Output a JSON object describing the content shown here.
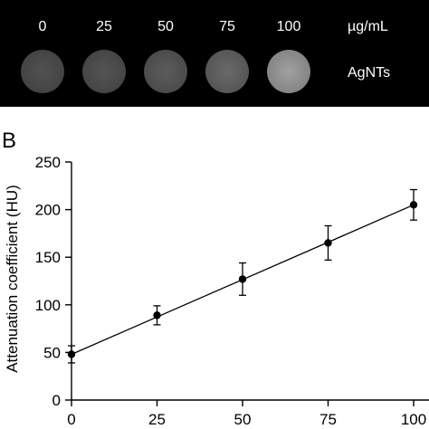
{
  "ct_panel": {
    "concentrations": [
      "0",
      "25",
      "50",
      "75",
      "100"
    ],
    "unit_label": "µg/mL",
    "sample_label": "AgNTs",
    "background_color": "#000000",
    "label_color": "#ffffff",
    "sample_brightness": [
      0.32,
      0.33,
      0.36,
      0.41,
      0.63
    ]
  },
  "panel_letter": "B",
  "chart_data": {
    "type": "scatter",
    "title": "",
    "xlabel": "",
    "ylabel": "Attenuation coefficient (HU)",
    "x": [
      0,
      25,
      50,
      75,
      100
    ],
    "y": [
      48,
      89,
      127,
      165,
      205
    ],
    "yerr": [
      9,
      10,
      17,
      18,
      16
    ],
    "fit_line": {
      "x": [
        0,
        100
      ],
      "y": [
        48,
        205
      ]
    },
    "xlim": [
      0,
      100
    ],
    "ylim": [
      0,
      250
    ],
    "xticks": [
      0,
      25,
      50,
      75,
      100
    ],
    "yticks": [
      0,
      50,
      100,
      150,
      200,
      250
    ],
    "grid": false,
    "marker_color": "#000000"
  }
}
